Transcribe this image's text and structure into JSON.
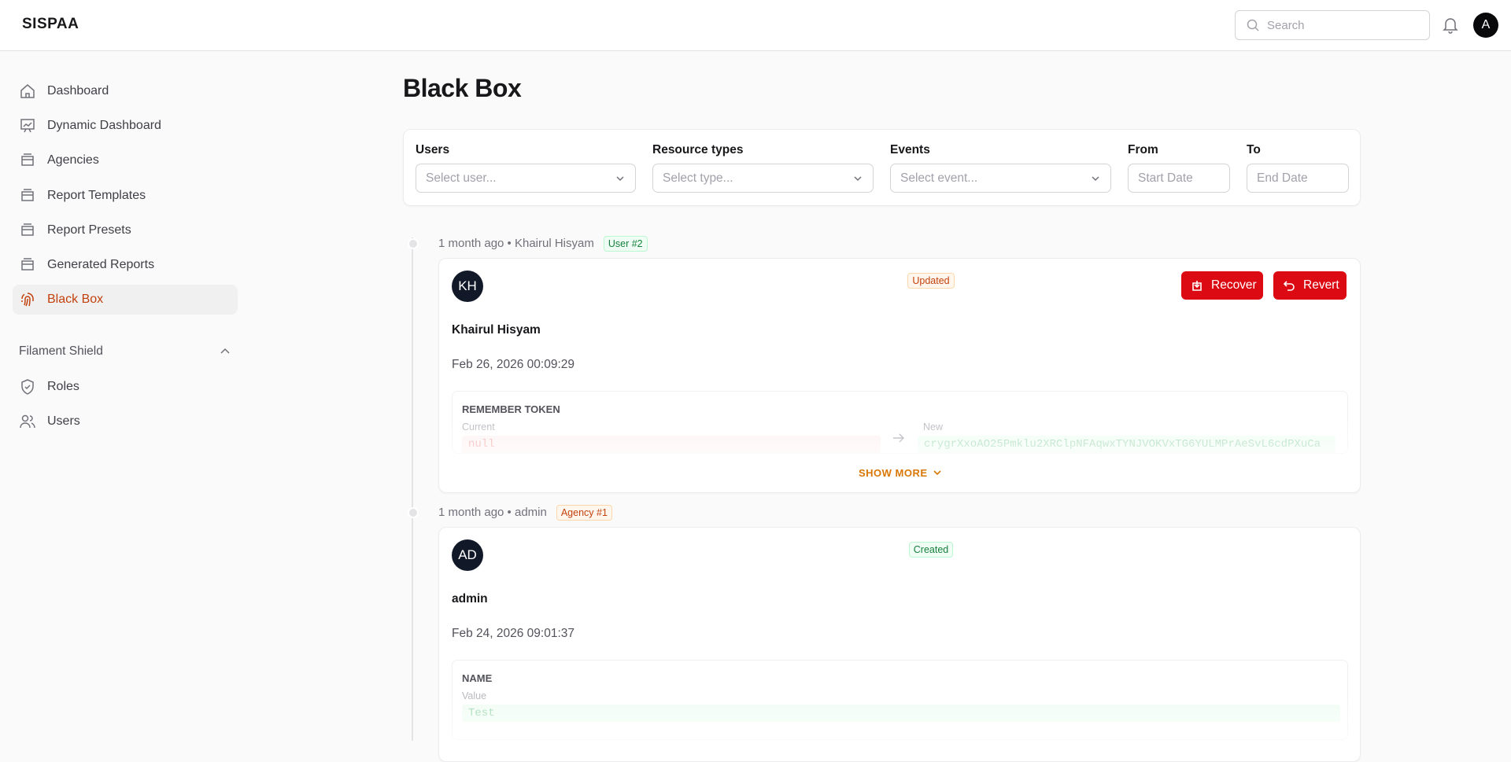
{
  "header": {
    "brand": "SISPAA",
    "search_placeholder": "Search",
    "avatar": "A"
  },
  "sidebar": {
    "items": [
      "Dashboard",
      "Dynamic Dashboard",
      "Agencies",
      "Report Templates",
      "Report Presets",
      "Generated Reports",
      "Black Box"
    ],
    "group": "Filament Shield",
    "group_items": [
      "Roles",
      "Users"
    ]
  },
  "page": {
    "title": "Black Box"
  },
  "filters": [
    {
      "label": "Users",
      "placeholder": "Select user..."
    },
    {
      "label": "Resource types",
      "placeholder": "Select type..."
    },
    {
      "label": "Events",
      "placeholder": "Select event..."
    },
    {
      "label": "From",
      "placeholder": "Start Date"
    },
    {
      "label": "To",
      "placeholder": "End Date"
    }
  ],
  "entries": [
    {
      "meta": "1 month ago • Khairul Hisyam",
      "subject": "User #2",
      "initials": "KH",
      "event": "Updated",
      "actions": [
        "Recover",
        "Revert"
      ],
      "name": "Khairul Hisyam",
      "date": "Feb 26, 2026 00:09:29",
      "field": "REMEMBER TOKEN",
      "current_label": "Current",
      "current": "null",
      "new_label": "New",
      "new": "crygrXxoAO25Pmklu2XRClpNFAqwxTYNJVOKVxTG6YULMPrAeSvL6cdPXuCa",
      "show_more": "SHOW MORE"
    },
    {
      "meta": "1 month ago • admin",
      "subject": "Agency #1",
      "initials": "AD",
      "event": "Created",
      "name": "admin",
      "date": "Feb 24, 2026 09:01:37",
      "field": "NAME",
      "value_label": "Value",
      "value": "Test"
    }
  ]
}
